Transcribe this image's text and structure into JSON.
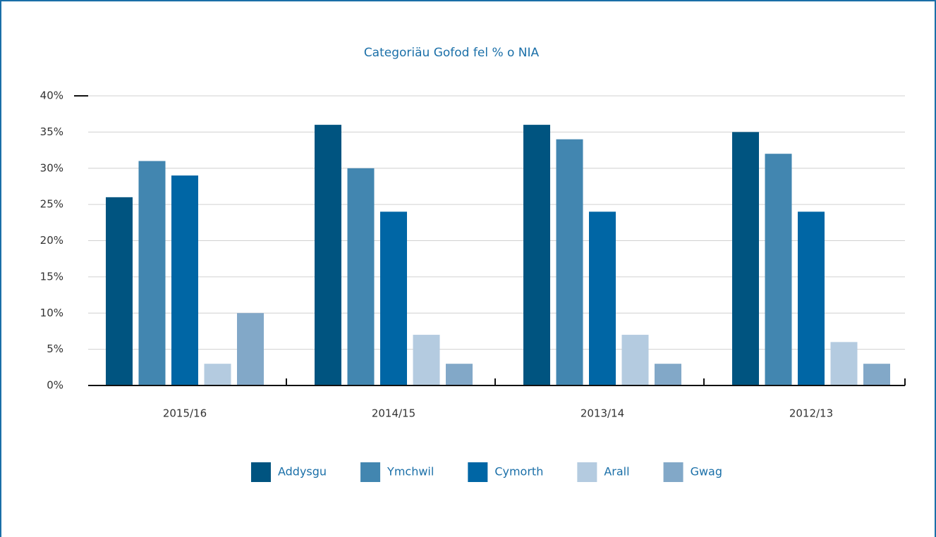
{
  "chart_data": {
    "type": "bar",
    "title": "Categoriäu Gofod fel % o NIA",
    "categories": [
      "2015/16",
      "2014/15",
      "2013/14",
      "2012/13"
    ],
    "series": [
      {
        "name": "Addysgu",
        "color": "#005480",
        "values": [
          26,
          36,
          36,
          35
        ]
      },
      {
        "name": "Ymchwil",
        "color": "#4286b0",
        "values": [
          31,
          30,
          34,
          32
        ]
      },
      {
        "name": "Cymorth",
        "color": "#0066a5",
        "values": [
          29,
          24,
          24,
          24
        ]
      },
      {
        "name": "Arall",
        "color": "#b4cbe0",
        "values": [
          3,
          7,
          7,
          6
        ]
      },
      {
        "name": "Gwag",
        "color": "#82a8c8",
        "values": [
          10,
          3,
          3,
          3
        ]
      }
    ],
    "ylim": [
      0,
      40
    ],
    "yticks": [
      {
        "value": 0,
        "label": "0%"
      },
      {
        "value": 5,
        "label": "5%"
      },
      {
        "value": 10,
        "label": "10%"
      },
      {
        "value": 15,
        "label": "15%"
      },
      {
        "value": 20,
        "label": "20%"
      },
      {
        "value": 25,
        "label": "25%"
      },
      {
        "value": 30,
        "label": "30%"
      },
      {
        "value": 35,
        "label": "35%"
      },
      {
        "value": 40,
        "label": "40%"
      }
    ],
    "grid": true,
    "legend": "bottom"
  }
}
